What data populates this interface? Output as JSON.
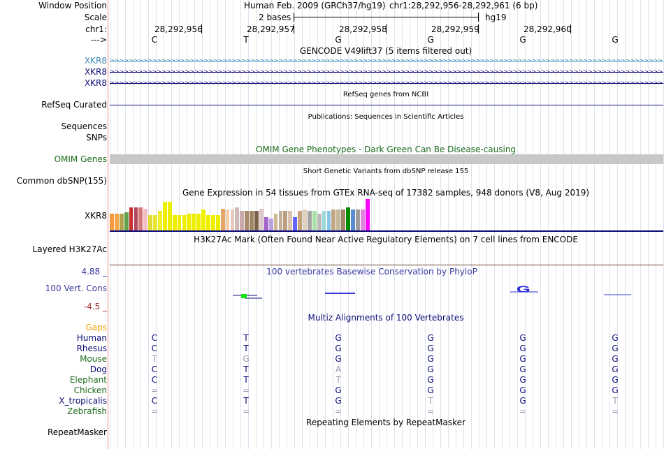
{
  "header": {
    "window_position_label": "Window Position",
    "window_position_value": "Human Feb. 2009 (GRCh37/hg19)",
    "coords": "chr1:28,292,956-28,292,961 (6 bp)",
    "scale_label": "Scale",
    "scale_value": "2 bases",
    "scale_assembly": "hg19",
    "chrom_label": "chr1:",
    "strand_label": "--->",
    "positions": [
      "28,292,956",
      "28,292,957",
      "28,292,958",
      "28,292,959",
      "28,292,960"
    ],
    "bases": [
      "C",
      "T",
      "G",
      "G",
      "G",
      "G"
    ]
  },
  "gencode": {
    "title": "GENCODE V49lift37 (5 items filtered out)",
    "genes": [
      "XKR8",
      "XKR8",
      "XKR8"
    ],
    "colors": [
      "#3d87b6",
      "#0c0c78",
      "#0c0c78"
    ]
  },
  "refseq": {
    "title": "RefSeq genes from NCBI",
    "label": "RefSeq Curated",
    "color": "#0c0c78"
  },
  "publications": {
    "title": "Publications: Sequences in Scientific Articles",
    "labels": [
      "Sequences",
      "SNPs"
    ]
  },
  "omim": {
    "title": "OMIM Gene Phenotypes - Dark Green Can Be Disease-causing",
    "label": "OMIM Genes",
    "color": "#1c6b1c",
    "bar_color": "#c8c8c8"
  },
  "dbsnp": {
    "title": "Short Genetic Variants from dbSNP release 155",
    "label": "Common dbSNP(155)"
  },
  "gtex": {
    "title": "Gene Expression in 54 tissues from GTEx RNA-seq of 17382 samples, 948 donors (V8, Aug 2019)",
    "label": "XKR8",
    "bars": [
      {
        "v": 0.54,
        "c": "#f59b42"
      },
      {
        "v": 0.54,
        "c": "#f5a54a"
      },
      {
        "v": 0.54,
        "c": "#b3a14b"
      },
      {
        "v": 0.57,
        "c": "#63a04b"
      },
      {
        "v": 0.73,
        "c": "#c92d2d"
      },
      {
        "v": 0.73,
        "c": "#b1475e"
      },
      {
        "v": 0.73,
        "c": "#d27878"
      },
      {
        "v": 0.69,
        "c": "#f4bfc3"
      },
      {
        "v": 0.49,
        "c": "#dede32"
      },
      {
        "v": 0.49,
        "c": "#e6e632"
      },
      {
        "v": 0.62,
        "c": "#eeee2a"
      },
      {
        "v": 0.9,
        "c": "#eeee00"
      },
      {
        "v": 0.9,
        "c": "#eeee00"
      },
      {
        "v": 0.49,
        "c": "#eeee00"
      },
      {
        "v": 0.49,
        "c": "#eeee00"
      },
      {
        "v": 0.49,
        "c": "#eeee00"
      },
      {
        "v": 0.54,
        "c": "#eeee00"
      },
      {
        "v": 0.54,
        "c": "#eeee00"
      },
      {
        "v": 0.54,
        "c": "#eeee00"
      },
      {
        "v": 0.67,
        "c": "#eeee00"
      },
      {
        "v": 0.49,
        "c": "#eeee00"
      },
      {
        "v": 0.49,
        "c": "#eeee00"
      },
      {
        "v": 0.49,
        "c": "#eeee00"
      },
      {
        "v": 0.69,
        "c": "#e6a566"
      },
      {
        "v": 0.67,
        "c": "#f4cfaa"
      },
      {
        "v": 0.67,
        "c": "#e6c9c0"
      },
      {
        "v": 0.73,
        "c": "#cfb9b9"
      },
      {
        "v": 0.62,
        "c": "#c8aaaa"
      },
      {
        "v": 0.62,
        "c": "#a98a6c"
      },
      {
        "v": 0.62,
        "c": "#9f8765"
      },
      {
        "v": 0.62,
        "c": "#7a6248"
      },
      {
        "v": 0.69,
        "c": "#e0c8c8"
      },
      {
        "v": 0.43,
        "c": "#a464c8"
      },
      {
        "v": 0.38,
        "c": "#b7a1e0"
      },
      {
        "v": 0.54,
        "c": "#d0b890"
      },
      {
        "v": 0.62,
        "c": "#c2b09a"
      },
      {
        "v": 0.62,
        "c": "#bb9f80"
      },
      {
        "v": 0.62,
        "c": "#d8c4b0"
      },
      {
        "v": 0.43,
        "c": "#6464ff"
      },
      {
        "v": 0.62,
        "c": "#c6a17d"
      },
      {
        "v": 0.67,
        "c": "#e2d1be"
      },
      {
        "v": 0.62,
        "c": "#a3a3a3"
      },
      {
        "v": 0.62,
        "c": "#aae0aa"
      },
      {
        "v": 0.54,
        "c": "#bababa"
      },
      {
        "v": 0.62,
        "c": "#9bd6d6"
      },
      {
        "v": 0.62,
        "c": "#87c5e8"
      },
      {
        "v": 0.67,
        "c": "#c2a682"
      },
      {
        "v": 0.67,
        "c": "#c8b89a"
      },
      {
        "v": 0.67,
        "c": "#a08466"
      },
      {
        "v": 0.73,
        "c": "#028c02"
      },
      {
        "v": 0.67,
        "c": "#5a8cd2"
      },
      {
        "v": 0.67,
        "c": "#9b9b9b"
      },
      {
        "v": 0.67,
        "c": "#dd88dd"
      },
      {
        "v": 1.0,
        "c": "#ff00ff"
      }
    ]
  },
  "h3k27ac": {
    "title": "H3K27Ac Mark (Often Found Near Active Regulatory Elements) on 7 cell lines from ENCODE",
    "label": "Layered H3K27Ac"
  },
  "phylop": {
    "title": "100 vertebrates Basewise Conservation by PhyloP",
    "label": "100 Vert. Cons",
    "max": "4.88 _",
    "min": "-4.5 _",
    "title_color": "#3a3aa0",
    "min_color": "#a0322d"
  },
  "multiz": {
    "title": "Multiz Alignments of 100 Vertebrates",
    "title_color": "#0c0c78",
    "gaps_label": "Gaps",
    "gaps_color": "#f0a000",
    "species": [
      {
        "name": "Human",
        "color": "#0c0c78",
        "bases": [
          "C",
          "T",
          "G",
          "G",
          "G",
          "G"
        ],
        "faint": [
          false,
          false,
          false,
          false,
          false,
          false
        ]
      },
      {
        "name": "Rhesus",
        "color": "#0c0c78",
        "bases": [
          "C",
          "T",
          "G",
          "G",
          "G",
          "G"
        ],
        "faint": [
          false,
          false,
          false,
          false,
          false,
          false
        ]
      },
      {
        "name": "Mouse",
        "color": "#1c6b1c",
        "bases": [
          "T",
          "G",
          "G",
          "G",
          "G",
          "G"
        ],
        "faint": [
          true,
          true,
          false,
          false,
          false,
          false
        ]
      },
      {
        "name": "Dog",
        "color": "#0c0c78",
        "bases": [
          "C",
          "T",
          "A",
          "G",
          "G",
          "G"
        ],
        "faint": [
          false,
          false,
          true,
          false,
          false,
          false
        ]
      },
      {
        "name": "Elephant",
        "color": "#1c6b1c",
        "bases": [
          "C",
          "T",
          "T",
          "G",
          "G",
          "G"
        ],
        "faint": [
          false,
          false,
          true,
          false,
          false,
          false
        ]
      },
      {
        "name": "Chicken",
        "color": "#1c6b1c",
        "bases": [
          "=",
          "=",
          "G",
          "G",
          "G",
          "G"
        ],
        "faint": [
          true,
          true,
          false,
          false,
          false,
          false
        ]
      },
      {
        "name": "X_tropicalis",
        "color": "#0c0c78",
        "bases": [
          "C",
          "T",
          "G",
          "T",
          "G",
          "T"
        ],
        "faint": [
          false,
          false,
          false,
          true,
          false,
          true
        ]
      },
      {
        "name": "Zebrafish",
        "color": "#1c6b1c",
        "bases": [
          "=",
          "=",
          "=",
          "=",
          "=",
          "="
        ],
        "faint": [
          true,
          true,
          true,
          true,
          true,
          true
        ]
      }
    ]
  },
  "repeatmasker": {
    "title": "Repeating Elements by RepeatMasker",
    "label": "RepeatMasker"
  }
}
